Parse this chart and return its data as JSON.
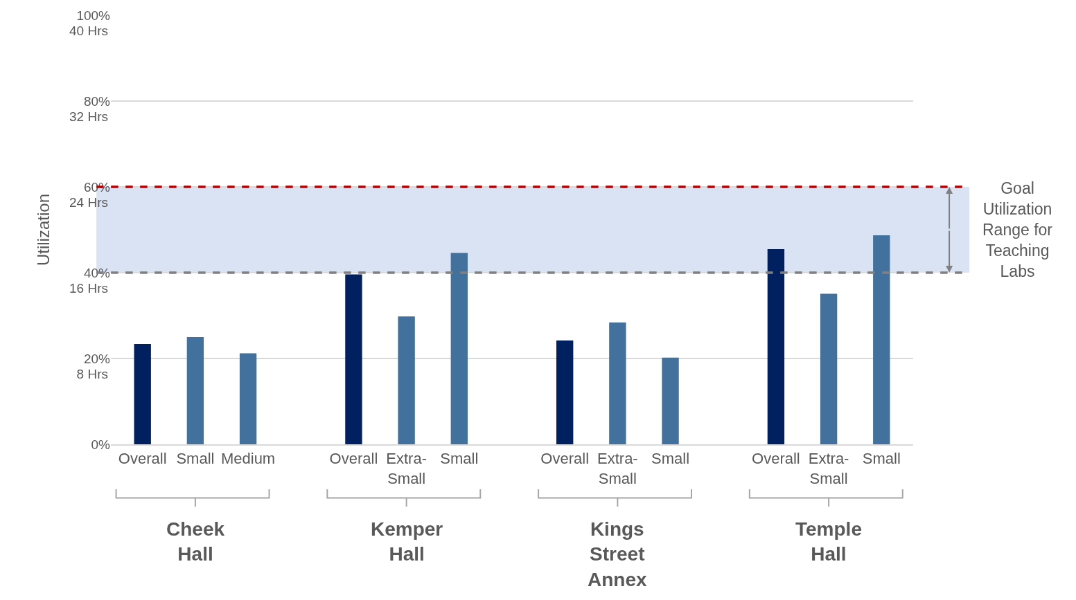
{
  "chart_data": {
    "type": "bar",
    "y2label": "Utilization",
    "categories": [
      "Overall",
      "Small",
      "Medium",
      "Overall",
      "Extra-Small",
      "Small",
      "Overall",
      "Extra-Small",
      "Small",
      "Overall",
      "Extra-Small",
      "Small"
    ],
    "values": [
      23.4,
      25.0,
      21.2,
      39.6,
      29.8,
      44.6,
      24.2,
      28.4,
      20.2,
      45.5,
      35.1,
      48.7
    ],
    "colors": [
      "#002060",
      "#41719c",
      "#41719c",
      "#002060",
      "#41719c",
      "#41719c",
      "#002060",
      "#41719c",
      "#41719c",
      "#002060",
      "#41719c",
      "#41719c"
    ],
    "ylim": [
      0,
      100
    ],
    "yticks": [
      {
        "value": 0,
        "label": "0%"
      },
      {
        "value": 20,
        "label": "20%"
      },
      {
        "value": 40,
        "label": "40%"
      },
      {
        "value": 60,
        "label": "60%"
      },
      {
        "value": 80,
        "label": "80%"
      },
      {
        "value": 100,
        "label": "100%"
      }
    ],
    "y2lim": [
      0,
      40
    ],
    "y2ticks": [
      {
        "value": 8,
        "label": "8 Hrs"
      },
      {
        "value": 16,
        "label": "16 Hrs"
      },
      {
        "value": 24,
        "label": "24 Hrs"
      },
      {
        "value": 32,
        "label": "32 Hrs"
      },
      {
        "value": 40,
        "label": "40 Hrs"
      }
    ],
    "grid": "y",
    "ref_lines": [
      {
        "axis": "y",
        "value": 60,
        "color": "#c00000",
        "line_style": "dashed"
      },
      {
        "axis": "y",
        "value": 40,
        "color": "#808080",
        "line_style": "dashed"
      }
    ],
    "bands": [
      {
        "axis": "y",
        "from": 40,
        "to": 60,
        "color": "#dae3f3",
        "label": "Goal Utilization Range for Teaching Labs"
      }
    ],
    "annotations": [
      "Cheek Hall",
      "Kemper Hall",
      "Kings Street Annex",
      "Temple Hall"
    ]
  }
}
